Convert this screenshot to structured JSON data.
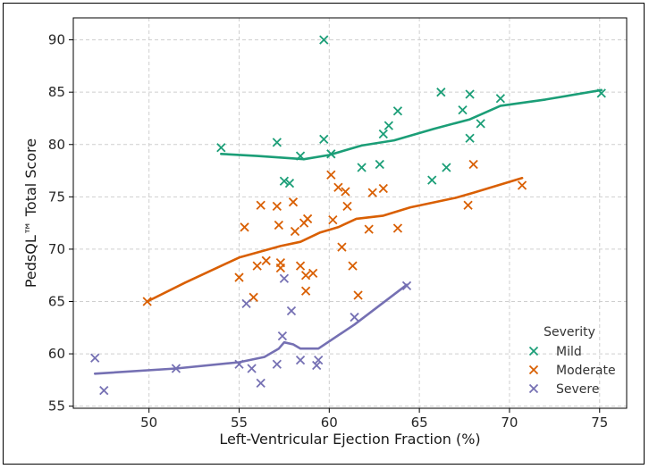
{
  "chart_data": {
    "type": "scatter",
    "title": "",
    "xlabel": "Left-Ventricular Ejection Fraction (%)",
    "ylabel": "PedsQL™ Total Score",
    "xlim": [
      45.8,
      76.5
    ],
    "ylim": [
      54.8,
      92.1
    ],
    "xticks": [
      50,
      55,
      60,
      65,
      70,
      75
    ],
    "yticks": [
      55,
      60,
      65,
      70,
      75,
      80,
      85,
      90
    ],
    "grid": true,
    "legend": {
      "title": "Severity",
      "placement": "bottom-right"
    },
    "series": [
      {
        "name": "Mild",
        "color": "#1b9e77",
        "marker": "x",
        "points": [
          [
            54.0,
            79.7
          ],
          [
            57.1,
            80.2
          ],
          [
            57.5,
            76.5
          ],
          [
            57.8,
            76.3
          ],
          [
            58.4,
            78.9
          ],
          [
            59.7,
            90.0
          ],
          [
            59.7,
            80.5
          ],
          [
            60.1,
            79.1
          ],
          [
            61.8,
            77.8
          ],
          [
            62.8,
            78.1
          ],
          [
            63.0,
            81.0
          ],
          [
            63.3,
            81.8
          ],
          [
            63.8,
            83.2
          ],
          [
            65.7,
            76.6
          ],
          [
            66.2,
            85.0
          ],
          [
            66.5,
            77.8
          ],
          [
            67.4,
            83.3
          ],
          [
            67.8,
            84.8
          ],
          [
            67.8,
            80.6
          ],
          [
            68.4,
            82.0
          ],
          [
            69.5,
            84.4
          ],
          [
            75.1,
            84.9
          ]
        ],
        "trend": [
          [
            54.0,
            79.1
          ],
          [
            56.0,
            78.9
          ],
          [
            58.6,
            78.6
          ],
          [
            60.0,
            79.0
          ],
          [
            61.8,
            79.9
          ],
          [
            63.6,
            80.4
          ],
          [
            65.8,
            81.5
          ],
          [
            67.8,
            82.4
          ],
          [
            69.5,
            83.7
          ],
          [
            72.0,
            84.3
          ],
          [
            75.1,
            85.2
          ]
        ]
      },
      {
        "name": "Moderate",
        "color": "#d95f02",
        "marker": "x",
        "points": [
          [
            49.9,
            65.0
          ],
          [
            55.0,
            67.3
          ],
          [
            55.3,
            72.1
          ],
          [
            55.8,
            65.4
          ],
          [
            56.0,
            68.4
          ],
          [
            56.2,
            74.2
          ],
          [
            56.5,
            68.9
          ],
          [
            57.1,
            74.1
          ],
          [
            57.2,
            72.3
          ],
          [
            57.3,
            68.7
          ],
          [
            57.3,
            68.2
          ],
          [
            58.0,
            74.5
          ],
          [
            58.1,
            71.7
          ],
          [
            58.4,
            68.4
          ],
          [
            58.6,
            72.5
          ],
          [
            58.7,
            66.0
          ],
          [
            58.7,
            67.5
          ],
          [
            58.8,
            72.9
          ],
          [
            59.1,
            67.7
          ],
          [
            60.1,
            77.1
          ],
          [
            60.2,
            72.8
          ],
          [
            60.5,
            75.9
          ],
          [
            60.7,
            70.2
          ],
          [
            60.9,
            75.5
          ],
          [
            61.0,
            74.1
          ],
          [
            61.3,
            68.4
          ],
          [
            61.6,
            65.6
          ],
          [
            62.2,
            71.9
          ],
          [
            62.4,
            75.4
          ],
          [
            63.0,
            75.8
          ],
          [
            63.8,
            72.0
          ],
          [
            67.7,
            74.2
          ],
          [
            68.0,
            78.1
          ],
          [
            70.7,
            76.1
          ]
        ],
        "trend": [
          [
            49.9,
            65.0
          ],
          [
            52.0,
            66.8
          ],
          [
            55.0,
            69.2
          ],
          [
            57.3,
            70.3
          ],
          [
            58.4,
            70.7
          ],
          [
            59.5,
            71.6
          ],
          [
            60.5,
            72.1
          ],
          [
            61.5,
            72.9
          ],
          [
            63.0,
            73.2
          ],
          [
            64.5,
            74.0
          ],
          [
            67.0,
            74.9
          ],
          [
            68.0,
            75.4
          ],
          [
            70.7,
            76.8
          ]
        ]
      },
      {
        "name": "Severe",
        "color": "#7570b3",
        "marker": "x",
        "points": [
          [
            47.0,
            59.6
          ],
          [
            47.5,
            56.5
          ],
          [
            51.5,
            58.6
          ],
          [
            55.0,
            59.0
          ],
          [
            55.4,
            64.8
          ],
          [
            55.7,
            58.6
          ],
          [
            56.2,
            57.2
          ],
          [
            57.1,
            59.0
          ],
          [
            57.4,
            61.7
          ],
          [
            57.5,
            67.2
          ],
          [
            57.9,
            64.1
          ],
          [
            58.4,
            59.4
          ],
          [
            59.3,
            58.9
          ],
          [
            59.4,
            59.4
          ],
          [
            61.4,
            63.5
          ],
          [
            64.3,
            66.5
          ]
        ],
        "trend": [
          [
            47.0,
            58.1
          ],
          [
            51.5,
            58.6
          ],
          [
            55.0,
            59.2
          ],
          [
            56.4,
            59.7
          ],
          [
            57.2,
            60.5
          ],
          [
            57.5,
            61.1
          ],
          [
            58.0,
            60.9
          ],
          [
            58.4,
            60.5
          ],
          [
            59.4,
            60.5
          ],
          [
            61.4,
            62.8
          ],
          [
            64.3,
            66.6
          ]
        ]
      }
    ]
  }
}
